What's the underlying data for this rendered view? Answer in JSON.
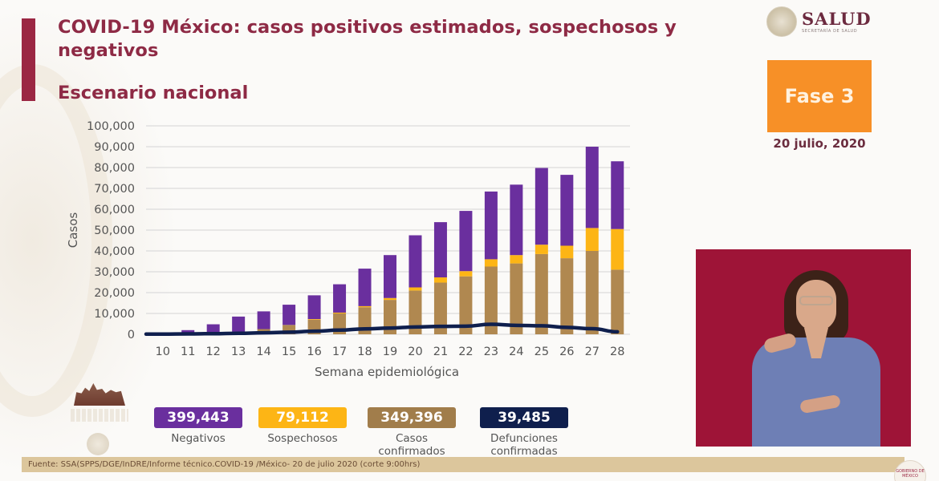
{
  "header": {
    "title": "COVID-19 México: casos positivos estimados, sospechosos y negativos",
    "subtitle": "Escenario nacional"
  },
  "logo": {
    "name": "SALUD",
    "tagline": "SECRETARÍA DE SALUD"
  },
  "phase": {
    "label": "Fase 3",
    "date": "20 julio, 2020"
  },
  "colors": {
    "negativos": "#6a2f9e",
    "sospechosos": "#fdb515",
    "confirmados": "#b08850",
    "defunciones": "#0f1f4d",
    "title": "#8e2a45",
    "phase": "#f79027"
  },
  "stats": [
    {
      "value": "399,443",
      "label": "Negativos",
      "color": "#6a2f9e"
    },
    {
      "value": "79,112",
      "label": "Sospechosos",
      "color": "#fdb515"
    },
    {
      "value": "349,396",
      "label": "Casos confirmados",
      "color": "#a17d4b"
    },
    {
      "value": "39,485",
      "label": "Defunciones confirmadas",
      "color": "#0f1f4d"
    }
  ],
  "footer": {
    "source": "Fuente: SSA(SPPS/DGE/InDRE/Informe técnico.COVID-19 /México- 20 de julio 2020 (corte 9:00hrs)",
    "badge": "GOBIERNO DE MÉXICO"
  },
  "chart_data": {
    "type": "bar",
    "stacked": true,
    "title": "",
    "xlabel": "Semana epidemiológica",
    "ylabel": "Casos",
    "ylim": [
      0,
      100000
    ],
    "yticks": [
      0,
      10000,
      20000,
      30000,
      40000,
      50000,
      60000,
      70000,
      80000,
      90000,
      100000
    ],
    "ytick_labels": [
      "0",
      "10,000",
      "20,000",
      "30,000",
      "40,000",
      "50,000",
      "60,000",
      "70,000",
      "80,000",
      "90,000",
      "100,000"
    ],
    "grid": true,
    "categories": [
      "10",
      "11",
      "12",
      "13",
      "14",
      "15",
      "16",
      "17",
      "18",
      "19",
      "20",
      "21",
      "22",
      "23",
      "24",
      "25",
      "26",
      "27",
      "28"
    ],
    "series": [
      {
        "name": "Casos confirmados",
        "type": "bar",
        "color": "#b08850",
        "values": [
          100,
          300,
          300,
          1200,
          2500,
          4500,
          7000,
          10000,
          13000,
          16500,
          21000,
          24800,
          27800,
          32500,
          34000,
          38500,
          36500,
          40000,
          31000
        ]
      },
      {
        "name": "Sospechosos",
        "type": "bar",
        "color": "#fdb515",
        "values": [
          0,
          0,
          0,
          0,
          0,
          0,
          300,
          400,
          500,
          900,
          1500,
          2500,
          2500,
          3500,
          4000,
          4500,
          6000,
          11000,
          19500
        ]
      },
      {
        "name": "Negativos",
        "type": "bar",
        "color": "#6a2f9e",
        "values": [
          200,
          1700,
          4500,
          7300,
          8500,
          9700,
          11400,
          13600,
          18000,
          20600,
          25000,
          26500,
          28900,
          32500,
          33800,
          36800,
          34000,
          39000,
          32500
        ]
      },
      {
        "name": "Defunciones confirmadas",
        "type": "line",
        "color": "#0f1f4d",
        "values": [
          100,
          200,
          300,
          500,
          700,
          1000,
          1500,
          2000,
          2600,
          3000,
          3500,
          3800,
          3900,
          4800,
          4300,
          4100,
          3300,
          2700,
          1200
        ]
      }
    ]
  }
}
